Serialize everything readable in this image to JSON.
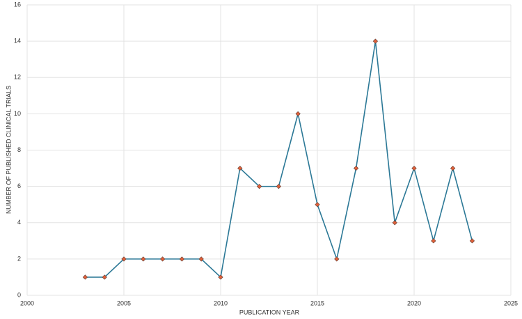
{
  "chart_data": {
    "type": "line",
    "x_label": "PUBLICATION YEAR",
    "y_label": "NUMBER OF PUBLISHED CLINICAL TRIALS",
    "x": [
      2003,
      2004,
      2005,
      2006,
      2007,
      2008,
      2009,
      2010,
      2011,
      2012,
      2013,
      2014,
      2015,
      2016,
      2017,
      2018,
      2019,
      2020,
      2021,
      2022,
      2023
    ],
    "values": [
      1,
      1,
      2,
      2,
      2,
      2,
      2,
      1,
      7,
      6,
      6,
      10,
      5,
      2,
      7,
      14,
      4,
      7,
      3,
      7,
      3
    ],
    "color": "#2b7896",
    "marker_color": "#e0603a",
    "xlim": [
      2000,
      2025
    ],
    "xticks": [
      2000,
      2005,
      2010,
      2015,
      2020,
      2025
    ],
    "ylim": [
      0,
      16
    ],
    "yticks": [
      0,
      2,
      4,
      6,
      8,
      10,
      12,
      14,
      16
    ],
    "grid": true
  }
}
